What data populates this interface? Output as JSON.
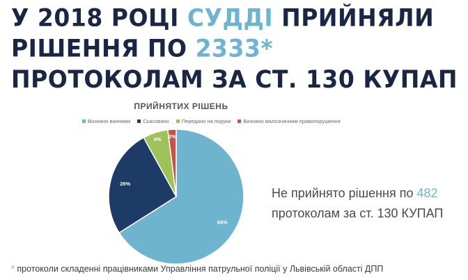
{
  "headline": {
    "part1": "У 2018 РОЦІ ",
    "highlight1": "СУДДІ",
    "part2": " ПРИЙНЯЛИ РІШЕННЯ ПО ",
    "highlight2": "2333*",
    "part3": " ПРОТОКОЛАМ ЗА СТ. 130 КУПАП"
  },
  "side_note": {
    "before": "Не прийнято рішення по ",
    "number": "482",
    "after": " протоколам за ст. 130 КУПАП"
  },
  "footnote": {
    "star": "*",
    "text": " протоколи складенні працівниками Управління патрульної поліції у Львівській області ДПП"
  },
  "chart_data": {
    "type": "pie",
    "title": "ПРИЙНЯТИХ РІШЕНЬ",
    "legend_position": "top",
    "slices": [
      {
        "name": "Визнано винними",
        "value": 66,
        "label": "66%",
        "color": "#6fb4cf"
      },
      {
        "name": "Скасовано",
        "value": 26,
        "label": "26%",
        "color": "#1e3a66"
      },
      {
        "name": "Передано на поруки",
        "value": 6,
        "label": "6%",
        "color": "#9dc25a"
      },
      {
        "name": "Визнано малозначним правопорушення",
        "value": 2,
        "label": "2%",
        "color": "#c8524a"
      }
    ]
  }
}
